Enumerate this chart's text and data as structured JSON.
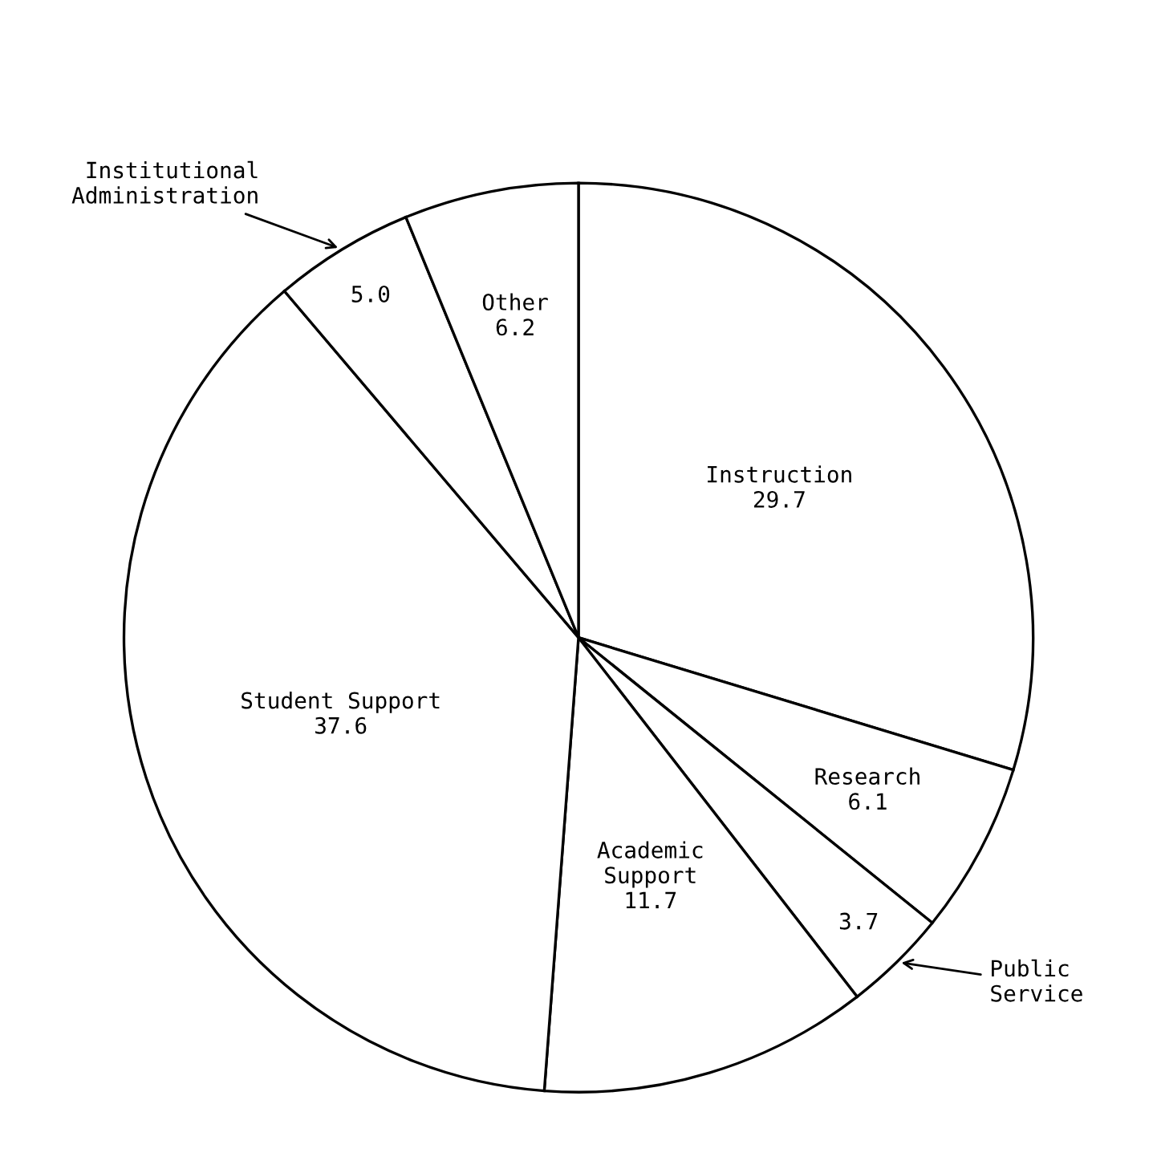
{
  "chart_data": {
    "type": "pie",
    "categories": [
      "Instruction",
      "Research",
      "Public\nService",
      "Academic\nSupport",
      "Student Support",
      "Institutional\nAdministration",
      "Other"
    ],
    "values": [
      29.7,
      6.1,
      3.7,
      11.7,
      37.6,
      5.0,
      6.2
    ],
    "value_labels": [
      "29.7",
      "6.1",
      "3.7",
      "11.7",
      "37.6",
      "5.0",
      "6.2"
    ],
    "colors": [
      "#ffffff",
      "#ffffff",
      "#ffffff",
      "#ffffff",
      "#ffffff",
      "#ffffff",
      "#ffffff"
    ]
  }
}
